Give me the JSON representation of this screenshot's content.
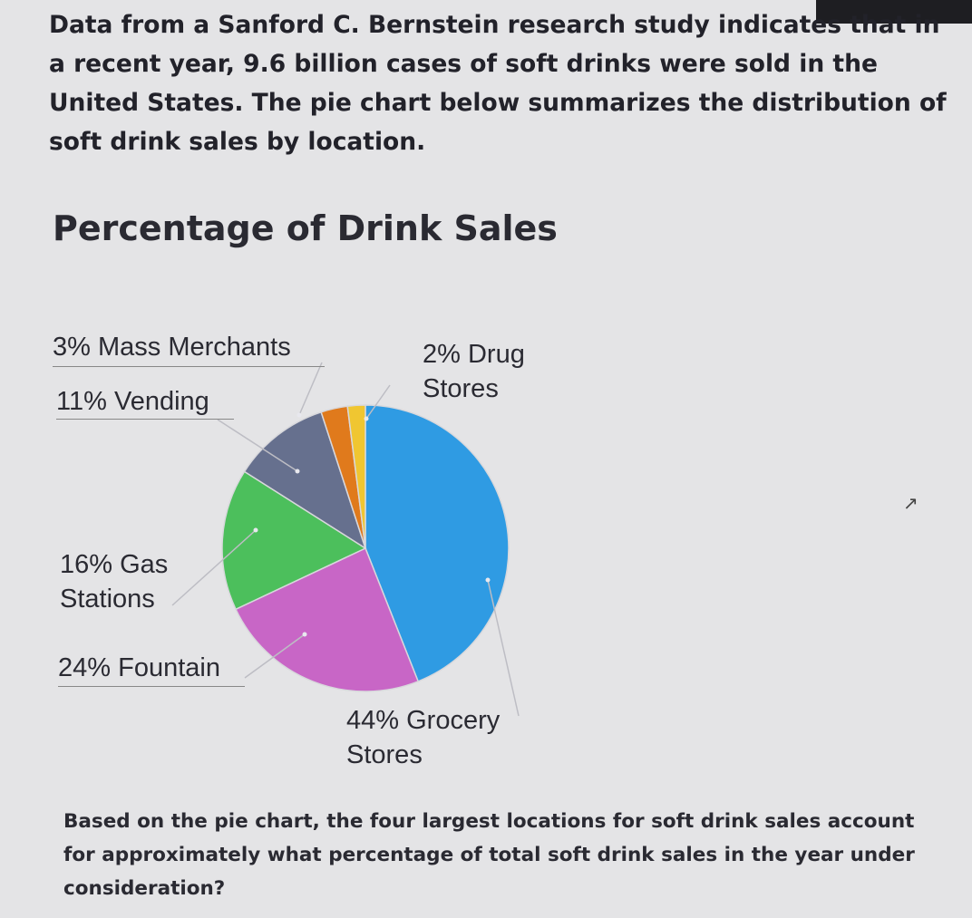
{
  "intro_text": "Data from a Sanford C. Bernstein research study indicates that in a recent year, 9.6 billion cases of soft drinks were sold in the United States. The pie chart below summarizes the distribution of soft drink sales by location.",
  "question_text": "Based on the pie chart, the four largest locations for soft drink sales account for approximately what percentage of total soft drink sales in the year under consideration?",
  "chart_data": {
    "type": "pie",
    "title": "Percentage of Drink Sales",
    "slices": [
      {
        "label_lines": [
          "44% Grocery",
          "Stores"
        ],
        "value": 44,
        "color": "#2f9be3"
      },
      {
        "label_lines": [
          "24% Fountain"
        ],
        "value": 24,
        "color": "#c866c6"
      },
      {
        "label_lines": [
          "16% Gas",
          "Stations"
        ],
        "value": 16,
        "color": "#4cbf5c"
      },
      {
        "label_lines": [
          "11% Vending"
        ],
        "value": 11,
        "color": "#66708e"
      },
      {
        "label_lines": [
          "3% Mass Merchants"
        ],
        "value": 3,
        "color": "#e07a1c"
      },
      {
        "label_lines": [
          "2% Drug",
          "Stores"
        ],
        "value": 2,
        "color": "#f0c631"
      }
    ]
  }
}
